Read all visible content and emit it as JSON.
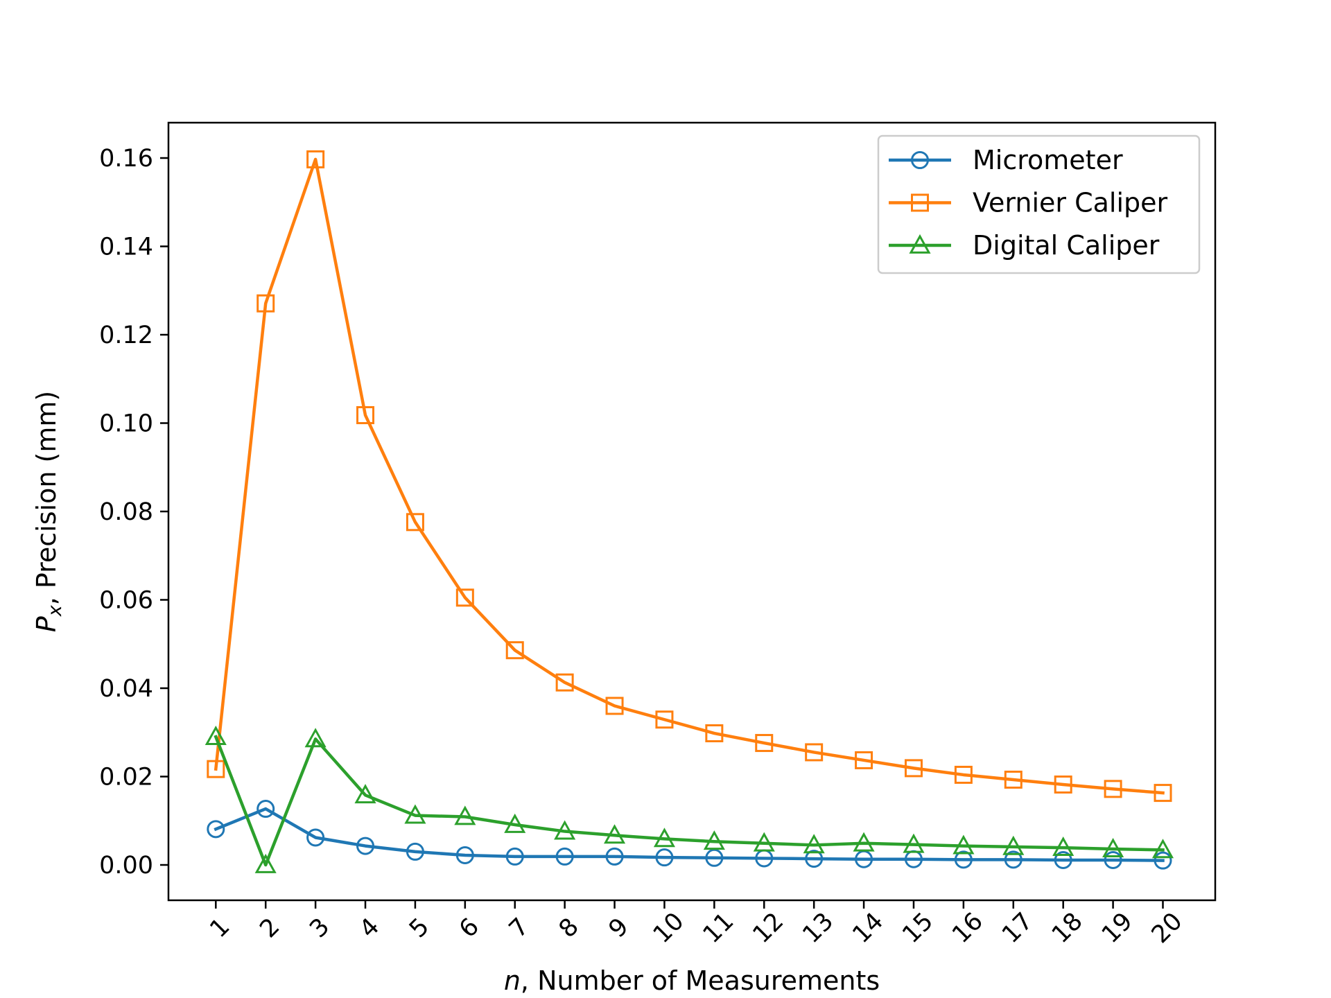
{
  "chart_data": {
    "type": "line",
    "title": "",
    "xlabel": "n, Number of Measurements",
    "ylabel": "Px, Precision (mm)",
    "xlabel_parts": {
      "var": "n",
      "rest": ", Number of Measurements"
    },
    "ylabel_parts": {
      "var": "P",
      "sub": "x",
      "rest": ", Precision (mm)"
    },
    "x": [
      1,
      2,
      3,
      4,
      5,
      6,
      7,
      8,
      9,
      10,
      11,
      12,
      13,
      14,
      15,
      16,
      17,
      18,
      19,
      20
    ],
    "xticks": [
      "1",
      "2",
      "3",
      "4",
      "5",
      "6",
      "7",
      "8",
      "9",
      "10",
      "11",
      "12",
      "13",
      "14",
      "15",
      "16",
      "17",
      "18",
      "19",
      "20"
    ],
    "yticks": [
      "0.00",
      "0.02",
      "0.04",
      "0.06",
      "0.08",
      "0.10",
      "0.12",
      "0.14",
      "0.16"
    ],
    "ylim": [
      -0.008,
      0.168
    ],
    "grid": false,
    "legend_position": "top-right",
    "series": [
      {
        "name": "Micrometer",
        "color": "#1f77b4",
        "marker": "circle",
        "values": [
          0.0081,
          0.0127,
          0.0062,
          0.0043,
          0.003,
          0.0022,
          0.0019,
          0.0019,
          0.0019,
          0.0017,
          0.0016,
          0.0015,
          0.0014,
          0.0013,
          0.0013,
          0.0012,
          0.0012,
          0.0011,
          0.0011,
          0.001
        ]
      },
      {
        "name": "Vernier Caliper",
        "color": "#ff7f0e",
        "marker": "square",
        "values": [
          0.0217,
          0.1271,
          0.1597,
          0.1018,
          0.0776,
          0.0605,
          0.0486,
          0.0413,
          0.036,
          0.0329,
          0.0298,
          0.0276,
          0.0255,
          0.0237,
          0.0219,
          0.0204,
          0.0193,
          0.0182,
          0.0172,
          0.0163
        ]
      },
      {
        "name": "Digital Caliper",
        "color": "#2ca02c",
        "marker": "triangle",
        "values": [
          0.029,
          0.0,
          0.0285,
          0.0158,
          0.0112,
          0.0109,
          0.0091,
          0.0076,
          0.0067,
          0.0059,
          0.0053,
          0.0049,
          0.0045,
          0.0049,
          0.0046,
          0.0043,
          0.0041,
          0.0039,
          0.0036,
          0.0034
        ]
      }
    ]
  }
}
